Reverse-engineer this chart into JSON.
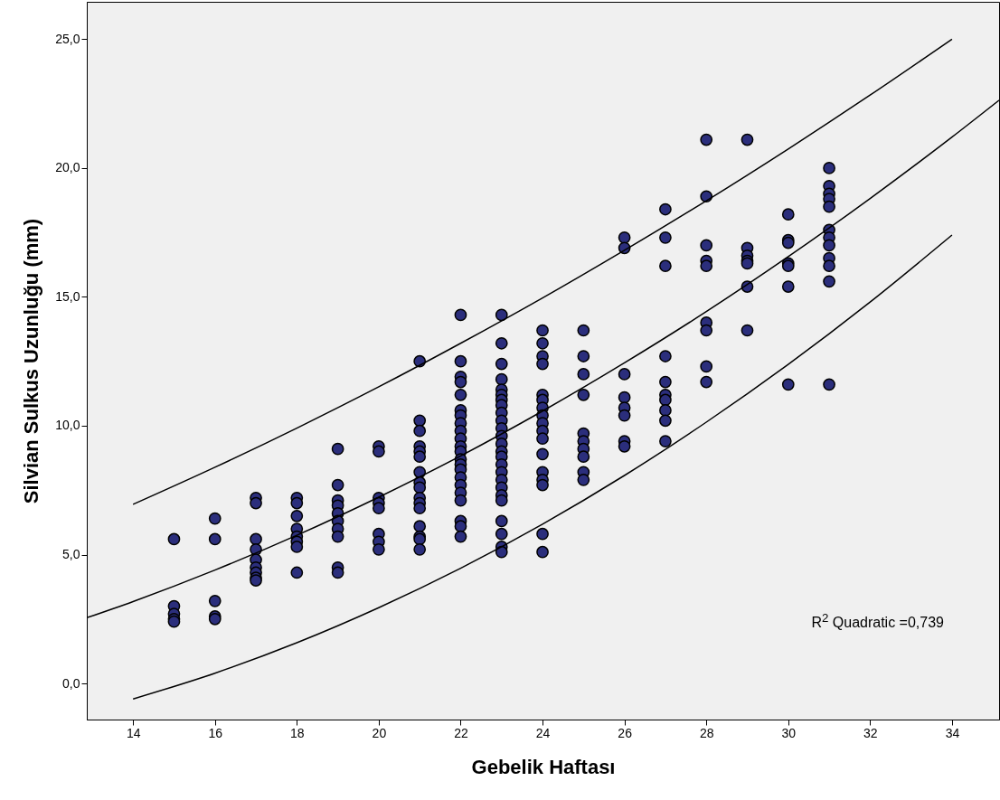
{
  "chart_data": {
    "type": "scatter",
    "xlabel": "Gebelik Haftası",
    "ylabel": "Silvian Sulkus Uzunluğu (mm)",
    "annotations": [
      "R$^{2}$ Quadratic =0,739"
    ],
    "xlim": [
      12.87,
      35.15
    ],
    "ylim": [
      -1.4,
      26.45
    ],
    "xticks": [
      14,
      16,
      18,
      20,
      22,
      24,
      26,
      28,
      30,
      32,
      34
    ],
    "yticks": [
      {
        "value": 0,
        "label": "0,0"
      },
      {
        "value": 5,
        "label": "5,0"
      },
      {
        "value": 10,
        "label": "10,0"
      },
      {
        "value": 15,
        "label": "15,0"
      },
      {
        "value": 20,
        "label": "20,0"
      },
      {
        "value": 25,
        "label": "25,0"
      }
    ],
    "grid": false,
    "series": [
      {
        "marker": "circle",
        "color": "#2b2e7c",
        "x": [
          15,
          15,
          15,
          15,
          15,
          16,
          16,
          16,
          16,
          16,
          17,
          17,
          17,
          17,
          17,
          17,
          17,
          17,
          17,
          18,
          18,
          18,
          18,
          18,
          18,
          18,
          18,
          19,
          19,
          19,
          19,
          19,
          19,
          19,
          19,
          19,
          19,
          20,
          20,
          20,
          20,
          20,
          20,
          20,
          20,
          21,
          21,
          21,
          21,
          21,
          21,
          21,
          21,
          21,
          21,
          21,
          21,
          21,
          21,
          21,
          21,
          22,
          22,
          22,
          22,
          22,
          22,
          22,
          22,
          22,
          22,
          22,
          22,
          22,
          22,
          22,
          22,
          22,
          22,
          22,
          22,
          22,
          22,
          23,
          23,
          23,
          23,
          23,
          23,
          23,
          23,
          23,
          23,
          23,
          23,
          23,
          23,
          23,
          23,
          23,
          23,
          23,
          23,
          23,
          23,
          23,
          23,
          23,
          24,
          24,
          24,
          24,
          24,
          24,
          24,
          24,
          24,
          24,
          24,
          24,
          24,
          24,
          24,
          24,
          24,
          25,
          25,
          25,
          25,
          25,
          25,
          25,
          25,
          25,
          25,
          26,
          26,
          26,
          26,
          26,
          26,
          26,
          26,
          27,
          27,
          27,
          27,
          27,
          27,
          27,
          27,
          27,
          27,
          28,
          28,
          28,
          28,
          28,
          28,
          28,
          28,
          28,
          29,
          29,
          29,
          29,
          29,
          29,
          29,
          30,
          30,
          30,
          30,
          30,
          30,
          30,
          31,
          31,
          31,
          31,
          31,
          31,
          31,
          31,
          31,
          31,
          31,
          31
        ],
        "values": [
          5.6,
          3.0,
          2.7,
          2.5,
          2.4,
          6.4,
          5.6,
          3.2,
          2.6,
          2.5,
          7.2,
          7.0,
          5.6,
          5.2,
          4.8,
          4.5,
          4.3,
          4.1,
          4.0,
          7.2,
          7.0,
          6.5,
          6.0,
          5.7,
          5.5,
          5.3,
          4.3,
          9.1,
          7.7,
          7.1,
          6.9,
          6.6,
          6.3,
          6.0,
          5.7,
          4.5,
          4.3,
          9.2,
          9.0,
          7.2,
          7.0,
          6.8,
          5.8,
          5.5,
          5.2,
          12.5,
          10.2,
          9.8,
          9.2,
          9.0,
          8.8,
          8.2,
          7.8,
          7.6,
          7.2,
          7.0,
          6.8,
          6.1,
          5.7,
          5.6,
          5.2,
          14.3,
          12.5,
          11.9,
          11.7,
          11.2,
          10.6,
          10.4,
          10.1,
          9.8,
          9.5,
          9.2,
          9.0,
          8.7,
          8.5,
          8.3,
          8.0,
          7.7,
          7.4,
          7.1,
          6.3,
          6.1,
          5.7,
          14.3,
          13.2,
          12.4,
          11.8,
          11.4,
          11.2,
          11.0,
          10.8,
          10.5,
          10.2,
          9.9,
          9.6,
          9.3,
          9.0,
          8.8,
          8.5,
          8.2,
          7.9,
          7.6,
          7.3,
          7.1,
          6.3,
          5.8,
          5.3,
          5.1,
          13.7,
          13.2,
          12.7,
          12.4,
          11.2,
          11.0,
          10.7,
          10.4,
          10.1,
          9.8,
          9.5,
          8.9,
          8.2,
          7.9,
          7.7,
          5.8,
          5.1,
          13.7,
          12.7,
          12.0,
          11.2,
          9.7,
          9.4,
          9.1,
          8.8,
          8.2,
          7.9,
          17.3,
          16.9,
          12.0,
          11.1,
          10.7,
          10.4,
          9.4,
          9.2,
          18.4,
          17.3,
          16.2,
          12.7,
          11.7,
          11.2,
          11.0,
          10.6,
          10.2,
          9.4,
          21.1,
          18.9,
          17.0,
          16.4,
          16.2,
          14.0,
          13.7,
          12.3,
          11.7,
          21.1,
          16.9,
          16.6,
          16.4,
          16.3,
          15.4,
          13.7,
          18.2,
          17.2,
          17.1,
          16.3,
          16.2,
          15.4,
          11.6,
          20.0,
          19.3,
          19.0,
          18.8,
          18.5,
          17.6,
          17.3,
          17.0,
          16.5,
          16.2,
          15.6,
          11.6
        ]
      },
      {
        "type": "line",
        "marker": "none",
        "line_style": "solid",
        "color": "#000000",
        "x": [
          12.87,
          14,
          16,
          18,
          20,
          22,
          24,
          26,
          28,
          30,
          32,
          34,
          35.15
        ],
        "values": [
          2.55,
          3.18,
          4.4,
          5.75,
          7.23,
          8.83,
          10.57,
          12.44,
          14.43,
          16.56,
          18.82,
          21.2,
          22.63
        ]
      },
      {
        "type": "line",
        "marker": "none",
        "line_style": "solid",
        "color": "#000000",
        "x": [
          14,
          16,
          18,
          20,
          22,
          24,
          26,
          28,
          30,
          32,
          34
        ],
        "values": [
          6.95,
          8.39,
          9.91,
          11.51,
          13.2,
          14.96,
          16.81,
          18.73,
          20.74,
          22.83,
          25.0
        ]
      },
      {
        "type": "line",
        "marker": "none",
        "line_style": "solid",
        "color": "#000000",
        "x": [
          14,
          16,
          18,
          20,
          22,
          24,
          26,
          28,
          30,
          32,
          34
        ],
        "values": [
          -0.6,
          0.4,
          1.58,
          2.94,
          4.47,
          6.18,
          8.07,
          10.14,
          12.38,
          14.8,
          17.4
        ]
      }
    ]
  }
}
